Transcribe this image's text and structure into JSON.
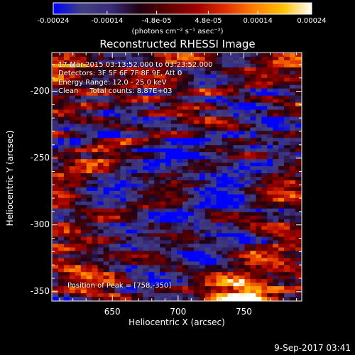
{
  "colors": {
    "colormap": [
      "#0000ff",
      "#404080",
      "#3a2a7a",
      "#200010",
      "#600000",
      "#a00000",
      "#e03000",
      "#ff8000",
      "#ffc000",
      "#ffffff"
    ],
    "background": "#000000",
    "foreground": "#ffffff"
  },
  "colorbar": {
    "ticks": [
      "-0.00024",
      "-0.00014",
      "-4.8e-05",
      "4.8e-05",
      "0.00014",
      "0.00024"
    ],
    "units_label": "(photons cm⁻² s⁻¹ asec⁻²)",
    "range": [
      -0.00024,
      0.00024
    ]
  },
  "chart_data": {
    "type": "heatmap",
    "title": "Reconstructed RHESSI Image",
    "xlabel": "Heliocentric X (arcsec)",
    "ylabel": "Heliocentric Y (arcsec)",
    "xlim": [
      604,
      794
    ],
    "ylim": [
      -357,
      -171
    ],
    "xticks": [
      650,
      700,
      750
    ],
    "yticks": [
      -200,
      -250,
      -300,
      -350
    ],
    "annotations": [
      "17-Mar-2015 03:13:52.000 to 03:23:52.000",
      "Detectors: 3F 5F 6F 7F 8F 9F, Att 0",
      "Energy Range: 12.0 - 25.0 keV",
      "Clean     Total counts: 8.87E+03"
    ],
    "peak_label": "Position of Peak = [758,-350]",
    "peak_position": [
      758,
      -350
    ]
  },
  "footer": {
    "date": "9-Sep-2017 03:41"
  }
}
